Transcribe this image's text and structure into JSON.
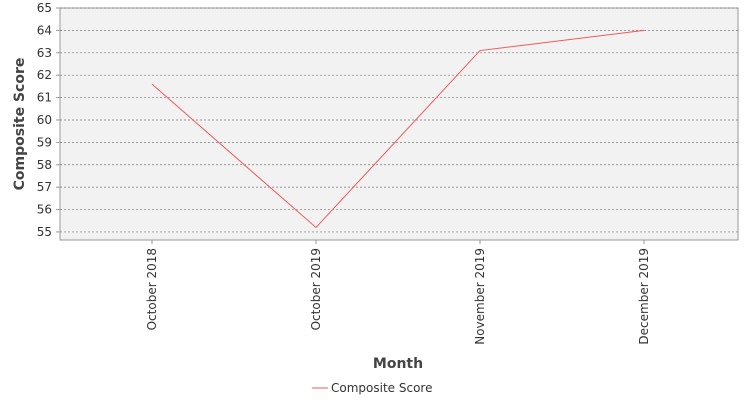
{
  "chart_data": {
    "type": "line",
    "x_label": "Month",
    "y_label": "Composite Score",
    "categories": [
      "October 2018",
      "October 2019",
      "November 2019",
      "December 2019"
    ],
    "series": [
      {
        "name": "Composite Score",
        "color": "#f05a5a",
        "values": [
          61.6,
          55.2,
          63.1,
          64.0
        ]
      }
    ],
    "ylim": [
      54.64,
      65
    ],
    "yticks": [
      55,
      56,
      57,
      58,
      59,
      60,
      61,
      62,
      63,
      64,
      65
    ],
    "grid": true,
    "legend": "bottom"
  }
}
